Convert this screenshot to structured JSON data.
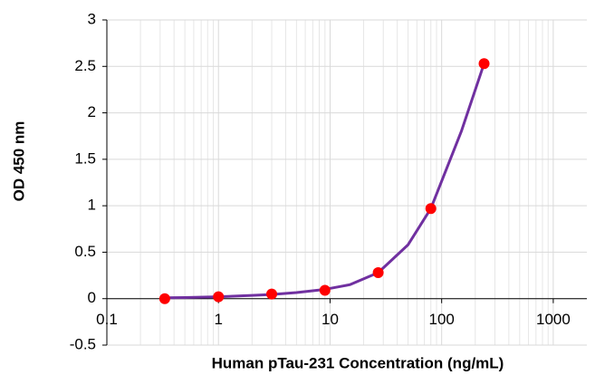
{
  "chart_data": {
    "type": "scatter",
    "xlabel": "Human pTau-231 Concentration (ng/mL)",
    "ylabel": "OD 450 nm",
    "xscale": "log",
    "xlim": [
      0.1,
      2000
    ],
    "xticks": [
      0.1,
      1,
      10,
      100,
      1000
    ],
    "ylim": [
      -0.5,
      3
    ],
    "yticks": [
      -0.5,
      0,
      0.5,
      1,
      1.5,
      2,
      2.5,
      3
    ],
    "grid": true,
    "series": [
      {
        "color": "#7030a0",
        "line": true,
        "x": [
          0.33,
          0.5,
          1,
          2,
          3,
          5,
          9,
          15,
          27,
          50,
          80,
          150,
          240
        ],
        "values": [
          0.01,
          0.012,
          0.02,
          0.035,
          0.045,
          0.065,
          0.1,
          0.15,
          0.28,
          0.58,
          0.97,
          1.8,
          2.53
        ]
      },
      {
        "color": "#ff0000",
        "marker": "circle",
        "x": [
          0.33,
          1,
          3,
          9,
          27,
          80,
          240
        ],
        "values": [
          0.0,
          0.02,
          0.05,
          0.09,
          0.28,
          0.97,
          2.53
        ]
      }
    ]
  }
}
